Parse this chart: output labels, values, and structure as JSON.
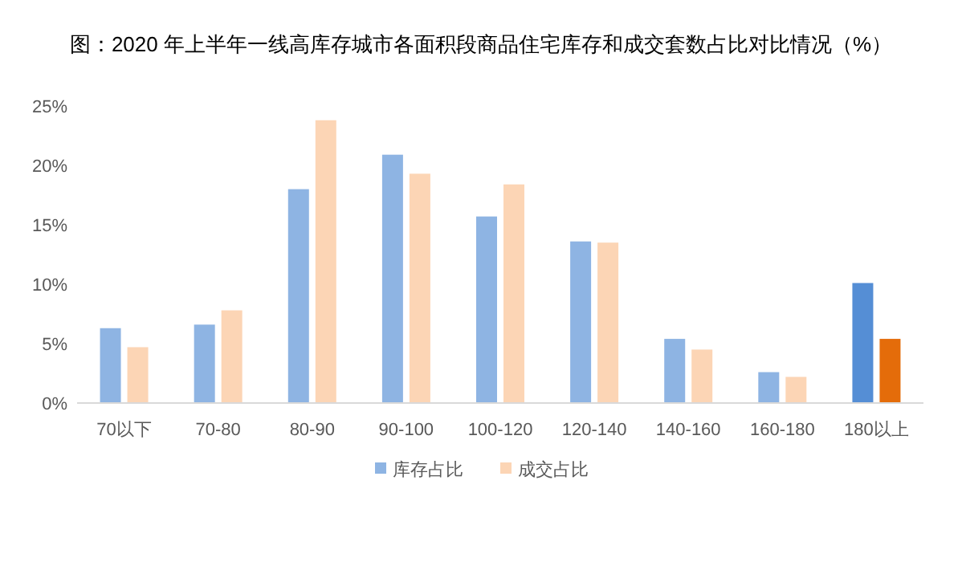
{
  "chart_data": {
    "type": "bar",
    "title": "图：2020 年上半年一线高库存城市各面积段商品住宅库存和成交套数占比对比情况（%）",
    "categories": [
      "70以下",
      "70-80",
      "80-90",
      "90-100",
      "100-120",
      "120-140",
      "140-160",
      "160-180",
      "180以上"
    ],
    "series": [
      {
        "name": "库存占比",
        "color": "#8eb4e3",
        "colors": [
          "#8eb4e3",
          "#8eb4e3",
          "#8eb4e3",
          "#8eb4e3",
          "#8eb4e3",
          "#8eb4e3",
          "#8eb4e3",
          "#8eb4e3",
          "#558ed5"
        ],
        "values": [
          6.3,
          6.6,
          18.0,
          20.9,
          15.7,
          13.6,
          5.4,
          2.6,
          10.1
        ]
      },
      {
        "name": "成交占比",
        "color": "#fcd5b5",
        "colors": [
          "#fcd5b5",
          "#fcd5b5",
          "#fcd5b5",
          "#fcd5b5",
          "#fcd5b5",
          "#fcd5b5",
          "#fcd5b5",
          "#fcd5b5",
          "#e46c0a"
        ],
        "values": [
          4.7,
          7.8,
          23.8,
          19.3,
          18.4,
          13.5,
          4.5,
          2.2,
          5.4
        ]
      }
    ],
    "ylim": [
      0,
      25
    ],
    "yticks": [
      {
        "value": 0,
        "label": "0%"
      },
      {
        "value": 5,
        "label": "5%"
      },
      {
        "value": 10,
        "label": "10%"
      },
      {
        "value": 15,
        "label": "15%"
      },
      {
        "value": 20,
        "label": "20%"
      },
      {
        "value": 25,
        "label": "25%"
      }
    ],
    "grid": false,
    "legend": "bottom"
  }
}
